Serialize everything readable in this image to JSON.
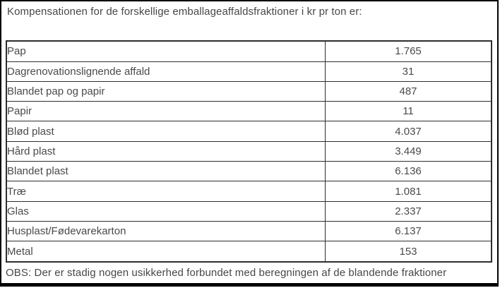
{
  "title": "Kompensationen for de forskellige emballageaffaldsfraktioner i kr pr ton er:",
  "table": {
    "rows": [
      {
        "label": "Pap",
        "value": "1.765"
      },
      {
        "label": "Dagrenovationslignende affald",
        "value": "31"
      },
      {
        "label": "Blandet pap og papir",
        "value": "487"
      },
      {
        "label": "Papir",
        "value": "11"
      },
      {
        "label": "Blød plast",
        "value": "4.037"
      },
      {
        "label": "Hård plast",
        "value": "3.449"
      },
      {
        "label": "Blandet plast",
        "value": "6.136"
      },
      {
        "label": "Træ",
        "value": "1.081"
      },
      {
        "label": "Glas",
        "value": "2.337"
      },
      {
        "label": "Husplast/Fødevarekarton",
        "value": "6.137"
      },
      {
        "label": "Metal",
        "value": "153"
      }
    ]
  },
  "note": "OBS: Der er stadig nogen usikkerhed forbundet med beregningen af de blandende fraktioner",
  "colors": {
    "background": "#ffffff",
    "frame": "#000000",
    "table_border": "#2e2e2e",
    "text": "#4a4a4a"
  }
}
